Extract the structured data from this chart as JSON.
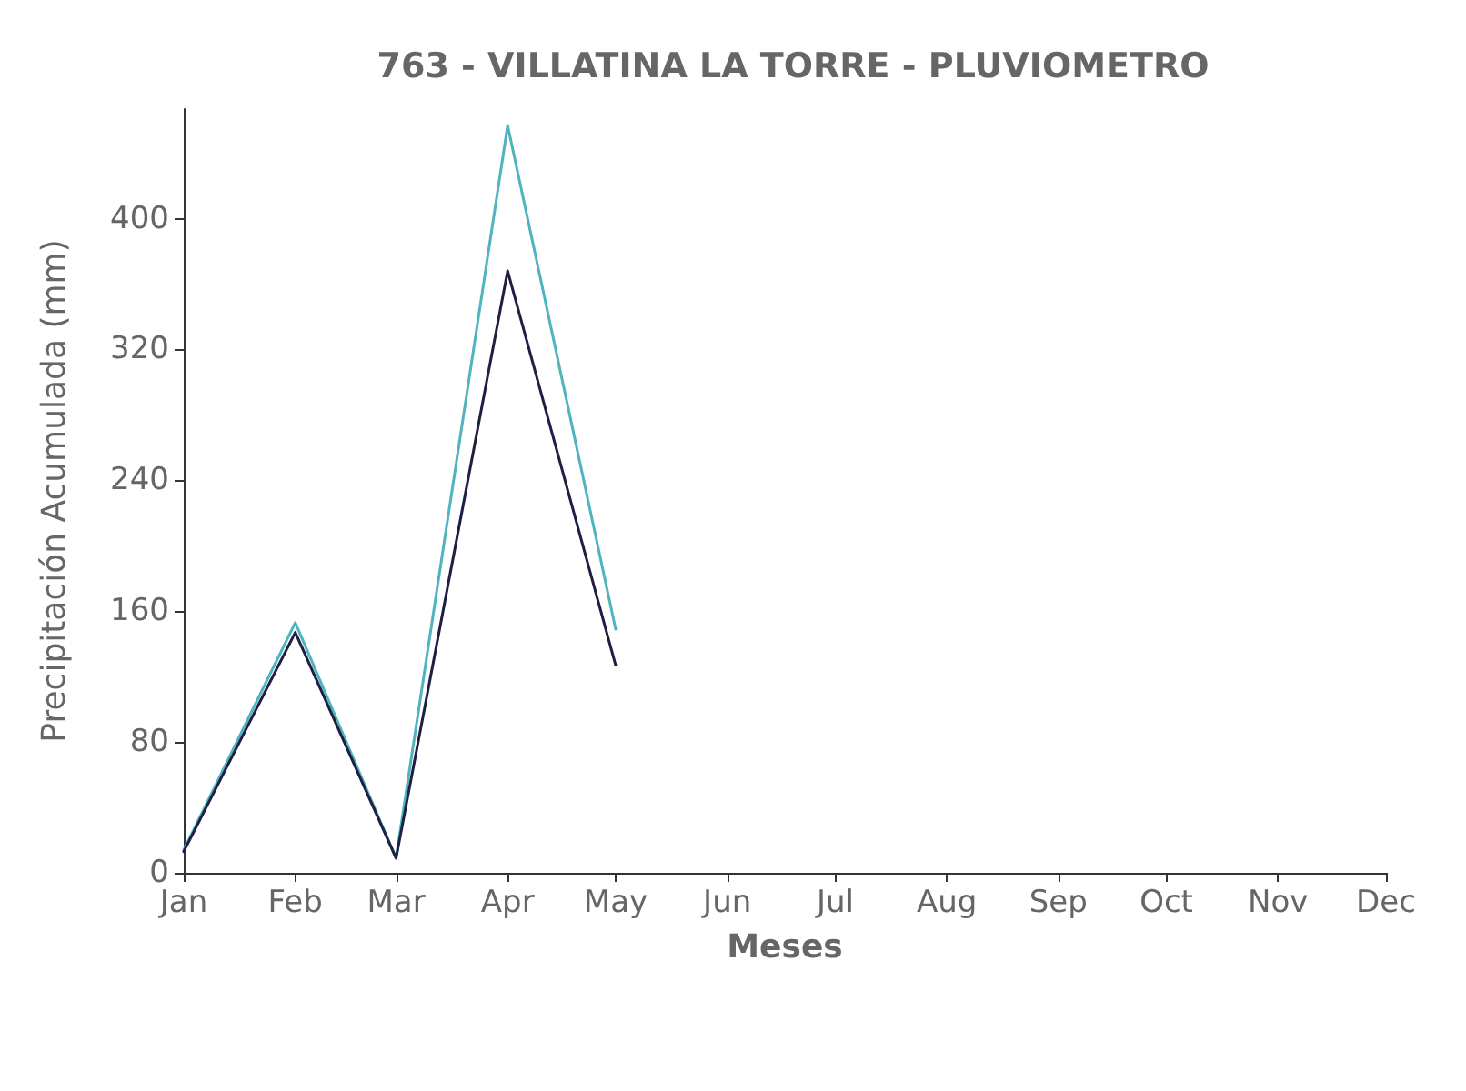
{
  "chart_data": {
    "type": "line",
    "title": "763 - VILLATINA LA TORRE - PLUVIOMETRO",
    "xlabel": "Meses",
    "ylabel": "Precipitación Acumulada (mm)",
    "x": [
      "--01-01",
      "--02-01",
      "--03-01",
      "--04-01",
      "--05-01"
    ],
    "series": [
      {
        "color": "#4fb3c0",
        "values": [
          14,
          153,
          9,
          457,
          149
        ]
      },
      {
        "color": "#1f1f44",
        "values": [
          13,
          147,
          9,
          368,
          127
        ]
      }
    ],
    "xlim": [
      "--01-01",
      "--12-01"
    ],
    "xticks": [
      {
        "value": "--01-01",
        "label": "Jan"
      },
      {
        "value": "--02-01",
        "label": "Feb"
      },
      {
        "value": "--03-01",
        "label": "Mar"
      },
      {
        "value": "--04-01",
        "label": "Apr"
      },
      {
        "value": "--05-01",
        "label": "May"
      },
      {
        "value": "--06-01",
        "label": "Jun"
      },
      {
        "value": "--07-01",
        "label": "Jul"
      },
      {
        "value": "--08-01",
        "label": "Aug"
      },
      {
        "value": "--09-01",
        "label": "Sep"
      },
      {
        "value": "--10-01",
        "label": "Oct"
      },
      {
        "value": "--11-01",
        "label": "Nov"
      },
      {
        "value": "--12-01",
        "label": "Dec"
      }
    ],
    "ylim": [
      0,
      467
    ],
    "yticks": [
      0,
      80,
      160,
      240,
      320,
      400
    ],
    "grid": false,
    "marker": "none",
    "line_style": "solid"
  }
}
